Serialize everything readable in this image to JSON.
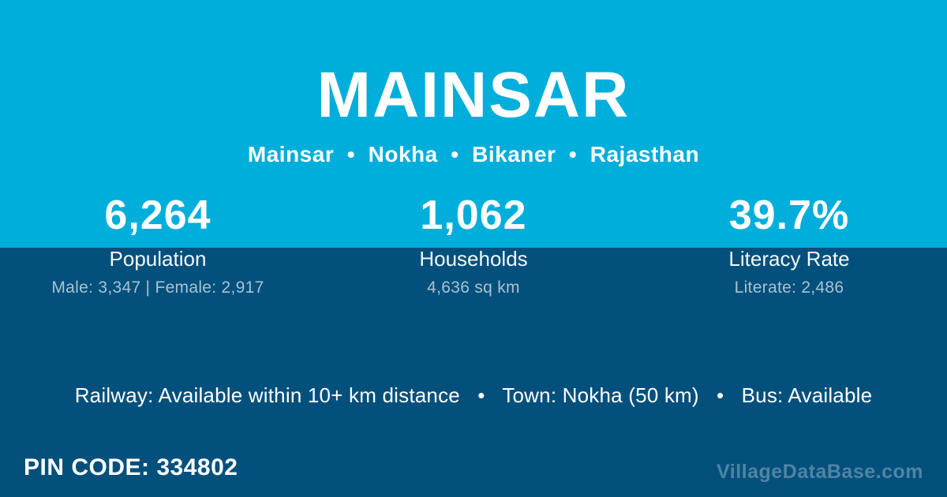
{
  "header": {
    "title": "MAINSAR",
    "breadcrumb": {
      "village": "Mainsar",
      "tehsil": "Nokha",
      "district": "Bikaner",
      "state": "Rajasthan",
      "display": "Mainsar  •  Nokha  •  Bikaner  •  Rajasthan"
    }
  },
  "stats": [
    {
      "value": "6,264",
      "label": "Population",
      "detail": "Male: 3,347 | Female: 2,917"
    },
    {
      "value": "1,062",
      "label": "Households",
      "detail": "4,636 sq km"
    },
    {
      "value": "39.7%",
      "label": "Literacy Rate",
      "detail": "Literate: 2,486"
    }
  ],
  "transport": {
    "railway": "Available within 10+ km distance",
    "town": "Nokha (50 km)",
    "bus": "Available",
    "display": "Railway: Available within 10+ km distance   •   Town: Nokha (50 km)   •   Bus: Available"
  },
  "footer": {
    "pin_code": "334802",
    "pin_display": "PIN CODE: 334802",
    "watermark": "VillageDataBase.com"
  },
  "colors": {
    "primary_cyan": "#00AEDB",
    "dark_blue": "#03507D",
    "text_white": "#FFFFFF",
    "text_muted": "rgba(255,255,255,0.65)"
  }
}
